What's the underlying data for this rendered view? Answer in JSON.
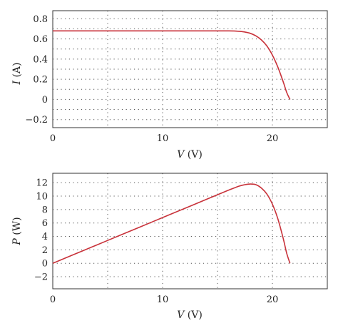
{
  "chart_data": [
    {
      "type": "line",
      "series": [
        {
          "x": [
            0,
            2,
            4,
            6,
            8,
            10,
            12,
            14,
            15,
            16,
            16.5,
            17,
            17.5,
            18,
            18.5,
            19,
            19.5,
            20,
            20.5,
            21,
            21.3,
            21.6
          ],
          "y": [
            0.68,
            0.68,
            0.68,
            0.68,
            0.68,
            0.68,
            0.68,
            0.68,
            0.68,
            0.68,
            0.679,
            0.675,
            0.668,
            0.655,
            0.63,
            0.59,
            0.53,
            0.44,
            0.32,
            0.17,
            0.07,
            0.0
          ]
        }
      ],
      "xlabel_var": "V",
      "xlabel_unit": "(V)",
      "ylabel_var": "I",
      "ylabel_unit": "(A)",
      "xlim": [
        0,
        25
      ],
      "ylim": [
        -0.28,
        0.88
      ],
      "xticks": [
        "0",
        "10",
        "20"
      ],
      "yticks": [
        "0.8",
        "0.6",
        "0.4",
        "0.2",
        "0",
        "−0.2"
      ],
      "xgrid": [
        5,
        10,
        15,
        20
      ],
      "ygrid": [
        0.8,
        0.7,
        0.6,
        0.5,
        0.4,
        0.3,
        0.2,
        0.1,
        0,
        -0.1,
        -0.2
      ],
      "grid": true
    },
    {
      "type": "line",
      "series": [
        {
          "x": [
            0,
            2,
            4,
            6,
            8,
            10,
            12,
            14,
            15,
            16,
            17,
            17.5,
            18,
            18.5,
            19,
            19.5,
            20,
            20.5,
            21,
            21.3,
            21.6
          ],
          "y": [
            0,
            1.36,
            2.72,
            4.08,
            5.44,
            6.8,
            8.16,
            9.52,
            10.2,
            10.88,
            11.5,
            11.7,
            11.8,
            11.7,
            11.2,
            10.3,
            8.8,
            6.6,
            3.6,
            1.5,
            0.0
          ]
        }
      ],
      "xlabel_var": "V",
      "xlabel_unit": "(V)",
      "ylabel_var": "P",
      "ylabel_unit": "(W)",
      "xlim": [
        0,
        25
      ],
      "ylim": [
        -3.8,
        13.4
      ],
      "xticks": [
        "0",
        "10",
        "20"
      ],
      "yticks": [
        "12",
        "10",
        "8",
        "6",
        "4",
        "2",
        "0",
        "−2"
      ],
      "xgrid": [
        5,
        10,
        15,
        20
      ],
      "ygrid": [
        12,
        10,
        8,
        6,
        4,
        2,
        0,
        -2
      ],
      "grid": true
    }
  ]
}
